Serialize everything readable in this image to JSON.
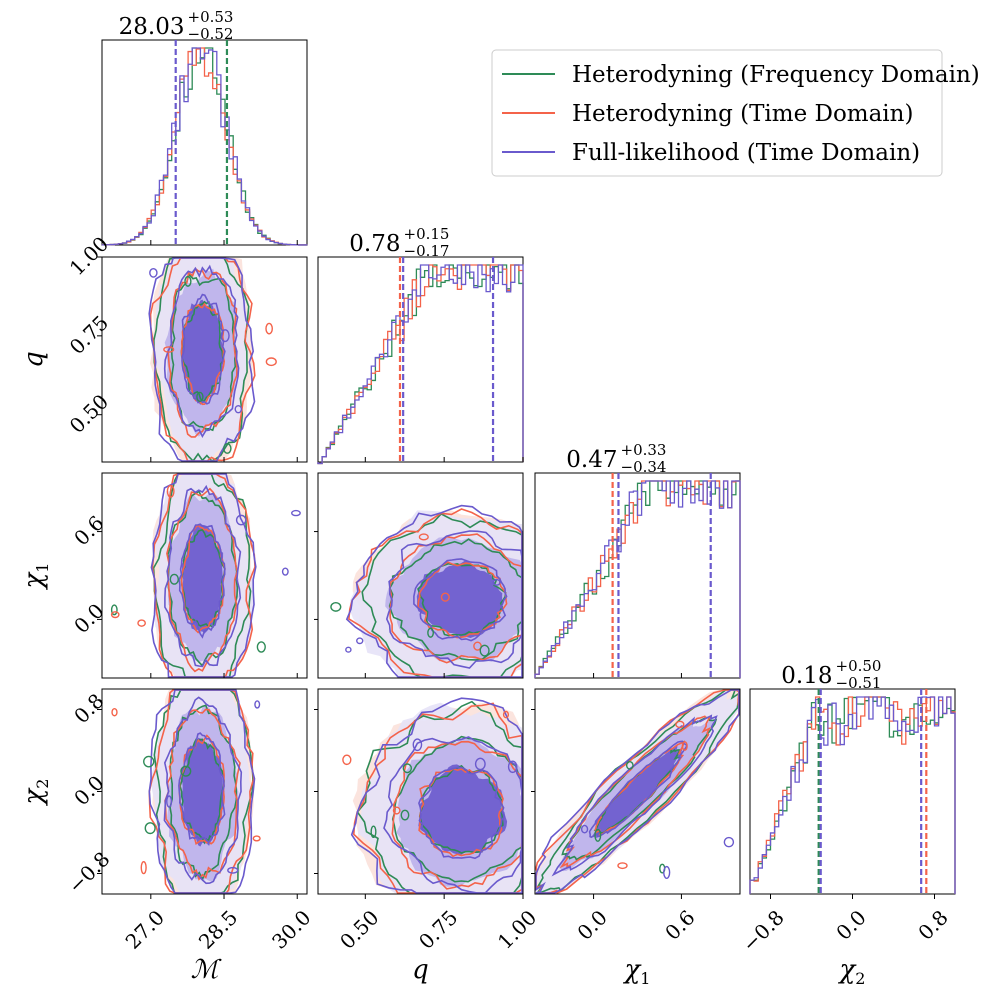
{
  "chart_data": {
    "type": "corner",
    "series": [
      {
        "name": "Heterodyning (Frequency Domain)",
        "color": "#2e8b57"
      },
      {
        "name": "Heterodyning (Time Domain)",
        "color": "#f4634a"
      },
      {
        "name": "Full-likelihood (Time Domain)",
        "color": "#6a5acd"
      }
    ],
    "legend": {
      "position": "top-right"
    },
    "params": [
      {
        "key": "mc",
        "label": "ℳ",
        "sub": "",
        "range": [
          26,
          30.2
        ],
        "ticks": [
          27.0,
          28.5,
          30.0
        ],
        "tick_labels": [
          "27.0",
          "28.5",
          "30.0"
        ],
        "title": {
          "median": "28.03",
          "plus": "+0.53",
          "minus": "−0.52"
        },
        "quantiles": [
          {
            "v": 27.51,
            "s": 2
          },
          {
            "v": 28.56,
            "s": 0
          }
        ],
        "hist": {
          "type": "gauss",
          "mean": 28.03,
          "sd": 0.52
        }
      },
      {
        "key": "q",
        "label": "q",
        "sub": "",
        "range": [
          0.35,
          1.0
        ],
        "ticks": [
          0.5,
          0.75,
          1.0
        ],
        "tick_labels": [
          "0.50",
          "0.75",
          "1.00"
        ],
        "title": {
          "median": "0.78",
          "plus": "+0.15",
          "minus": "−0.17"
        },
        "quantiles": [
          {
            "v": 0.61,
            "s": 1
          },
          {
            "v": 0.62,
            "s": 2
          },
          {
            "v": 0.905,
            "s": 2
          }
        ],
        "hist": {
          "type": "rampq"
        }
      },
      {
        "key": "chi1",
        "label": "χ",
        "sub": "1",
        "range": [
          -0.4,
          1.0
        ],
        "ticks": [
          0.0,
          0.6
        ],
        "tick_labels": [
          "0.0",
          "0.6"
        ],
        "title": {
          "median": "0.47",
          "plus": "+0.33",
          "minus": "−0.34"
        },
        "quantiles": [
          {
            "v": 0.13,
            "s": 1
          },
          {
            "v": 0.17,
            "s": 2
          },
          {
            "v": 0.8,
            "s": 2
          }
        ],
        "hist": {
          "type": "rampc"
        }
      },
      {
        "key": "chi2",
        "label": "χ",
        "sub": "2",
        "range": [
          -1.0,
          1.0
        ],
        "ticks": [
          -0.8,
          0.0,
          0.8
        ],
        "tick_labels": [
          "−0.8",
          "0.0",
          "0.8"
        ],
        "title": {
          "median": "0.18",
          "plus": "+0.50",
          "minus": "−0.51"
        },
        "quantiles": [
          {
            "v": -0.33,
            "s": 0
          },
          {
            "v": -0.31,
            "s": 2
          },
          {
            "v": 0.67,
            "s": 2
          },
          {
            "v": 0.72,
            "s": 1
          }
        ],
        "hist": {
          "type": "rampd"
        }
      }
    ]
  }
}
